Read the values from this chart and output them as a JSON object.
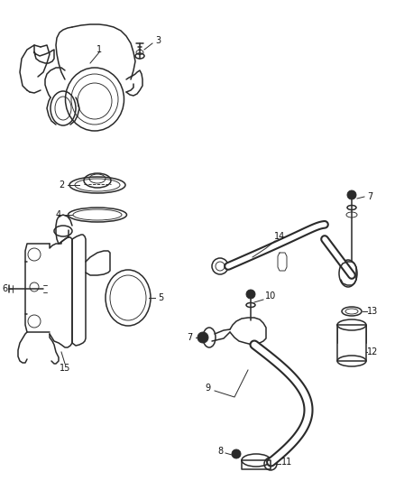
{
  "background_color": "#ffffff",
  "fig_width": 4.38,
  "fig_height": 5.33,
  "dpi": 100,
  "line_color": "#2a2a2a",
  "label_color": "#111111",
  "label_fontsize": 7.0,
  "lw_main": 1.1,
  "lw_thin": 0.65,
  "lw_hose": 4.5,
  "lw_hose_inner": 2.8
}
